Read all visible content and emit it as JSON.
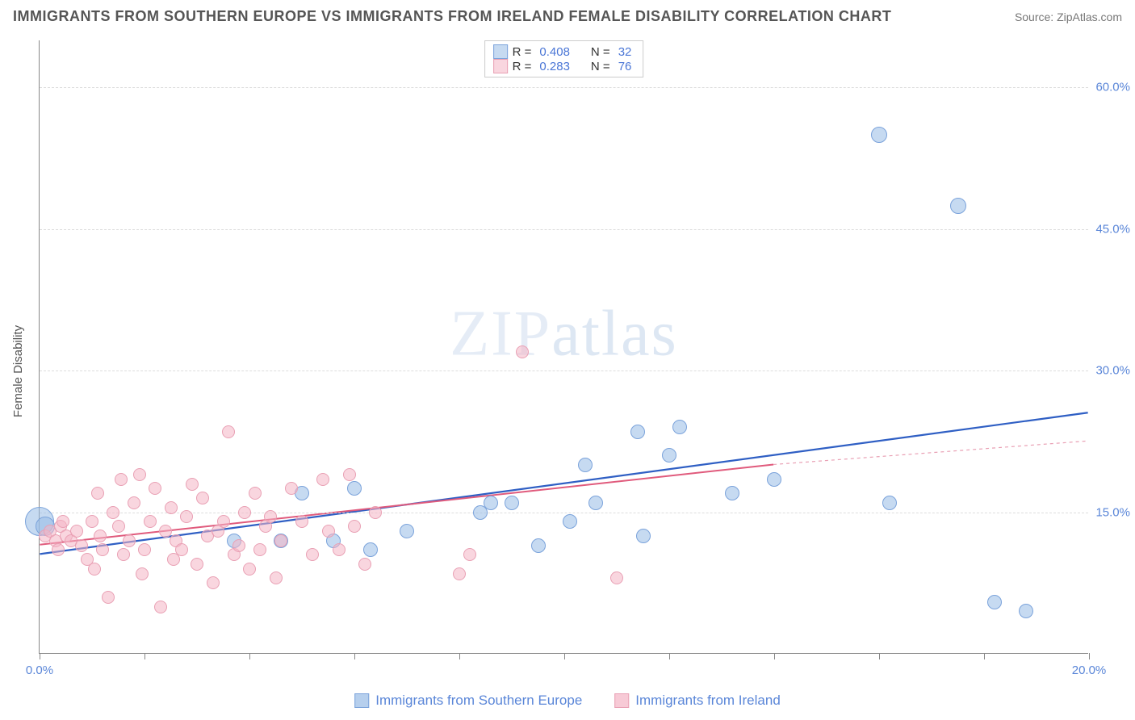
{
  "title": "IMMIGRANTS FROM SOUTHERN EUROPE VS IMMIGRANTS FROM IRELAND FEMALE DISABILITY CORRELATION CHART",
  "source": "Source: ZipAtlas.com",
  "watermark": "ZIPatlas",
  "ylabel": "Female Disability",
  "chart": {
    "type": "scatter",
    "xlim": [
      0,
      20
    ],
    "ylim": [
      0,
      65
    ],
    "x_ticks": [
      0,
      2,
      4,
      6,
      8,
      10,
      12,
      14,
      16,
      18,
      20
    ],
    "x_tick_labels": {
      "0": "0.0%",
      "20": "20.0%"
    },
    "y_ticks": [
      15,
      30,
      45,
      60
    ],
    "y_tick_labels": {
      "15": "15.0%",
      "30": "30.0%",
      "45": "45.0%",
      "60": "60.0%"
    },
    "grid_color": "#dddddd",
    "axis_color": "#888888",
    "background": "#ffffff",
    "series": [
      {
        "name": "Immigrants from Southern Europe",
        "color_fill": "rgba(151,187,229,0.55)",
        "color_stroke": "#7ba3db",
        "marker_radius": 9,
        "r_value": "0.408",
        "n_value": "32",
        "trend": {
          "x1": 0,
          "y1": 10.5,
          "x2": 20,
          "y2": 25.5,
          "color": "#2f5fc4",
          "width": 2.2,
          "dash": ""
        },
        "points": [
          [
            0.0,
            14.0,
            18
          ],
          [
            0.1,
            13.5,
            12
          ],
          [
            3.7,
            12.0,
            9
          ],
          [
            4.6,
            12.0,
            9
          ],
          [
            5.0,
            17.0,
            9
          ],
          [
            5.6,
            12.0,
            9
          ],
          [
            6.0,
            17.5,
            9
          ],
          [
            6.3,
            11.0,
            9
          ],
          [
            7.0,
            13.0,
            9
          ],
          [
            8.4,
            15.0,
            9
          ],
          [
            8.6,
            16.0,
            9
          ],
          [
            9.0,
            16.0,
            9
          ],
          [
            9.5,
            11.5,
            9
          ],
          [
            10.1,
            14.0,
            9
          ],
          [
            10.4,
            20.0,
            9
          ],
          [
            10.6,
            16.0,
            9
          ],
          [
            11.4,
            23.5,
            9
          ],
          [
            11.5,
            12.5,
            9
          ],
          [
            12.0,
            21.0,
            9
          ],
          [
            12.2,
            24.0,
            9
          ],
          [
            13.2,
            17.0,
            9
          ],
          [
            14.0,
            18.5,
            9
          ],
          [
            16.2,
            16.0,
            9
          ],
          [
            16.0,
            55.0,
            10
          ],
          [
            17.5,
            47.5,
            10
          ],
          [
            18.2,
            5.5,
            9
          ],
          [
            18.8,
            4.5,
            9
          ]
        ]
      },
      {
        "name": "Immigrants from Ireland",
        "color_fill": "rgba(244,180,196,0.55)",
        "color_stroke": "#e9a0b4",
        "marker_radius": 9,
        "r_value": "0.283",
        "n_value": "76",
        "trend": {
          "x1": 0,
          "y1": 11.5,
          "x2": 14,
          "y2": 20.0,
          "color": "#e05a7c",
          "width": 2.0,
          "dash": ""
        },
        "trend_ext": {
          "x1": 14,
          "y1": 20.0,
          "x2": 20,
          "y2": 22.5,
          "color": "#e9a0b4",
          "width": 1.2,
          "dash": "4 4"
        },
        "points": [
          [
            0.1,
            12.5,
            8
          ],
          [
            0.2,
            13.0,
            8
          ],
          [
            0.3,
            12.0,
            8
          ],
          [
            0.35,
            11.0,
            8
          ],
          [
            0.4,
            13.5,
            8
          ],
          [
            0.45,
            14.0,
            8
          ],
          [
            0.5,
            12.5,
            8
          ],
          [
            0.6,
            12.0,
            8
          ],
          [
            0.7,
            13.0,
            8
          ],
          [
            0.8,
            11.5,
            8
          ],
          [
            0.9,
            10.0,
            8
          ],
          [
            1.0,
            14.0,
            8
          ],
          [
            1.05,
            9.0,
            8
          ],
          [
            1.1,
            17.0,
            8
          ],
          [
            1.15,
            12.5,
            8
          ],
          [
            1.2,
            11.0,
            8
          ],
          [
            1.3,
            6.0,
            8
          ],
          [
            1.4,
            15.0,
            8
          ],
          [
            1.5,
            13.5,
            8
          ],
          [
            1.55,
            18.5,
            8
          ],
          [
            1.6,
            10.5,
            8
          ],
          [
            1.7,
            12.0,
            8
          ],
          [
            1.8,
            16.0,
            8
          ],
          [
            1.9,
            19.0,
            8
          ],
          [
            1.95,
            8.5,
            8
          ],
          [
            2.0,
            11.0,
            8
          ],
          [
            2.1,
            14.0,
            8
          ],
          [
            2.2,
            17.5,
            8
          ],
          [
            2.3,
            5.0,
            8
          ],
          [
            2.4,
            13.0,
            8
          ],
          [
            2.5,
            15.5,
            8
          ],
          [
            2.55,
            10.0,
            8
          ],
          [
            2.6,
            12.0,
            8
          ],
          [
            2.7,
            11.0,
            8
          ],
          [
            2.8,
            14.5,
            8
          ],
          [
            2.9,
            18.0,
            8
          ],
          [
            3.0,
            9.5,
            8
          ],
          [
            3.1,
            16.5,
            8
          ],
          [
            3.2,
            12.5,
            8
          ],
          [
            3.3,
            7.5,
            8
          ],
          [
            3.4,
            13.0,
            8
          ],
          [
            3.5,
            14.0,
            8
          ],
          [
            3.6,
            23.5,
            8
          ],
          [
            3.7,
            10.5,
            8
          ],
          [
            3.8,
            11.5,
            8
          ],
          [
            3.9,
            15.0,
            8
          ],
          [
            4.0,
            9.0,
            8
          ],
          [
            4.1,
            17.0,
            8
          ],
          [
            4.2,
            11.0,
            8
          ],
          [
            4.3,
            13.5,
            8
          ],
          [
            4.4,
            14.5,
            8
          ],
          [
            4.5,
            8.0,
            8
          ],
          [
            4.6,
            12.0,
            8
          ],
          [
            4.8,
            17.5,
            8
          ],
          [
            5.0,
            14.0,
            8
          ],
          [
            5.2,
            10.5,
            8
          ],
          [
            5.4,
            18.5,
            8
          ],
          [
            5.5,
            13.0,
            8
          ],
          [
            5.7,
            11.0,
            8
          ],
          [
            5.9,
            19.0,
            8
          ],
          [
            6.0,
            13.5,
            8
          ],
          [
            6.2,
            9.5,
            8
          ],
          [
            6.4,
            15.0,
            8
          ],
          [
            8.0,
            8.5,
            8
          ],
          [
            8.2,
            10.5,
            8
          ],
          [
            9.2,
            32.0,
            8
          ],
          [
            11.0,
            8.0,
            8
          ]
        ]
      }
    ]
  },
  "rn_legend_label_r": "R =",
  "rn_legend_label_n": "N =",
  "bottom_legend": [
    {
      "label": "Immigrants from Southern Europe",
      "fill": "rgba(151,187,229,0.7)",
      "stroke": "#7ba3db"
    },
    {
      "label": "Immigrants from Ireland",
      "fill": "rgba(244,180,196,0.7)",
      "stroke": "#e9a0b4"
    }
  ]
}
